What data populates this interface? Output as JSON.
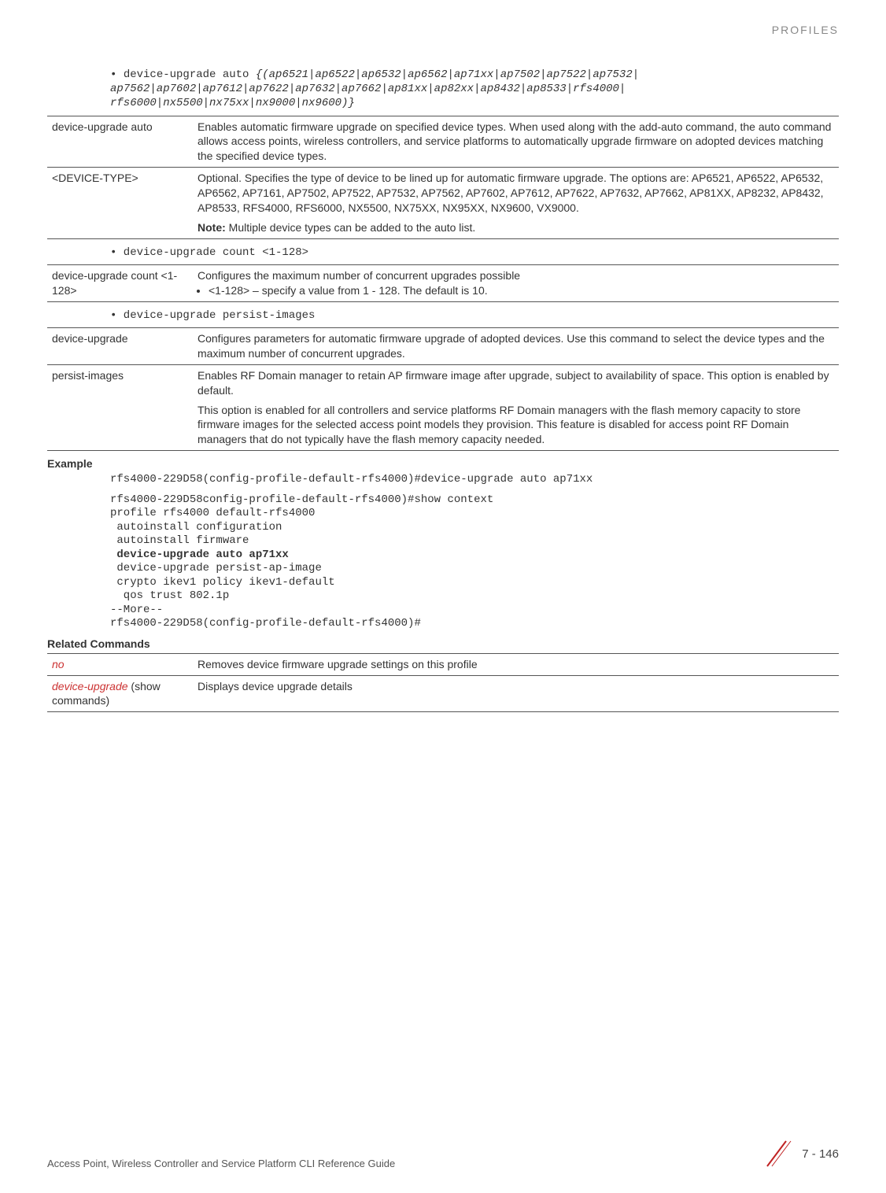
{
  "header": {
    "title": "PROFILES"
  },
  "code1": {
    "bullet": "• ",
    "prefix": "device-upgrade auto ",
    "italic": "{(ap6521|ap6522|ap6532|ap6562|ap71xx|ap7502|ap7522|ap7532|\nap7562|ap7602|ap7612|ap7622|ap7632|ap7662|ap81xx|ap82xx|ap8432|ap8533|rfs4000|\nrfs6000|nx5500|nx75xx|nx9000|nx9600)}"
  },
  "table1": {
    "r1c1": "device-upgrade auto",
    "r1c2": "Enables automatic firmware upgrade on specified device types. When used along with the add-auto command, the auto command allows access points, wireless controllers, and service platforms to automatically upgrade firmware on adopted devices matching the specified device types.",
    "r2c1": "<DEVICE-TYPE>",
    "r2c2a": "Optional. Specifies the type of device to be lined up for automatic firmware upgrade. The options are: AP6521, AP6522, AP6532, AP6562, AP7161, AP7502, AP7522, AP7532, AP7562, AP7602, AP7612, AP7622, AP7632, AP7662, AP81XX, AP8232, AP8432, AP8533, RFS4000, RFS6000, NX5500, NX75XX, NX95XX, NX9600, VX9000.",
    "r2c2_note_label": "Note:",
    "r2c2_note_text": " Multiple device types can be added to the auto list."
  },
  "code2": {
    "text": "• device-upgrade count <1-128>"
  },
  "table2": {
    "r1c1": "device-upgrade count <1-128>",
    "r1c2a": "Configures the maximum number of concurrent upgrades possible",
    "r1c2b": "<1-128> – specify a value from 1 - 128. The default is 10."
  },
  "code3": {
    "text": "• device-upgrade persist-images"
  },
  "table3": {
    "r1c1": "device-upgrade",
    "r1c2": "Configures parameters for automatic firmware upgrade of adopted devices. Use this command to select the device types and the maximum number of concurrent upgrades.",
    "r2c1": "persist-images",
    "r2c2a": "Enables RF Domain manager to retain AP firmware image after upgrade, subject to availability of space. This option is enabled by default.",
    "r2c2b": "This option is enabled for all controllers and service platforms RF Domain managers with the flash memory capacity to store firmware images for the selected access point models they provision. This feature is disabled for access point RF Domain managers that do not typically have the flash memory capacity needed."
  },
  "example": {
    "label": "Example",
    "line1": "rfs4000-229D58(config-profile-default-rfs4000)#device-upgrade auto ap71xx",
    "block": "rfs4000-229D58config-profile-default-rfs4000)#show context\nprofile rfs4000 default-rfs4000\n autoinstall configuration\n autoinstall firmware",
    "bold_line": " device-upgrade auto ap71xx",
    "block2": " device-upgrade persist-ap-image\n crypto ikev1 policy ikev1-default\n  qos trust 802.1p\n--More--\nrfs4000-229D58(config-profile-default-rfs4000)#"
  },
  "related": {
    "label": "Related Commands",
    "r1c1": "no",
    "r1c2": "Removes device firmware upgrade settings on this profile",
    "r2c1a": "device-upgrade",
    "r2c1b": " (show commands)",
    "r2c2": "Displays device upgrade details"
  },
  "footer": {
    "left": "Access Point, Wireless Controller and Service Platform CLI Reference Guide",
    "right": "7 - 146"
  },
  "colors": {
    "red": "#cc3333",
    "gray": "#888888"
  }
}
